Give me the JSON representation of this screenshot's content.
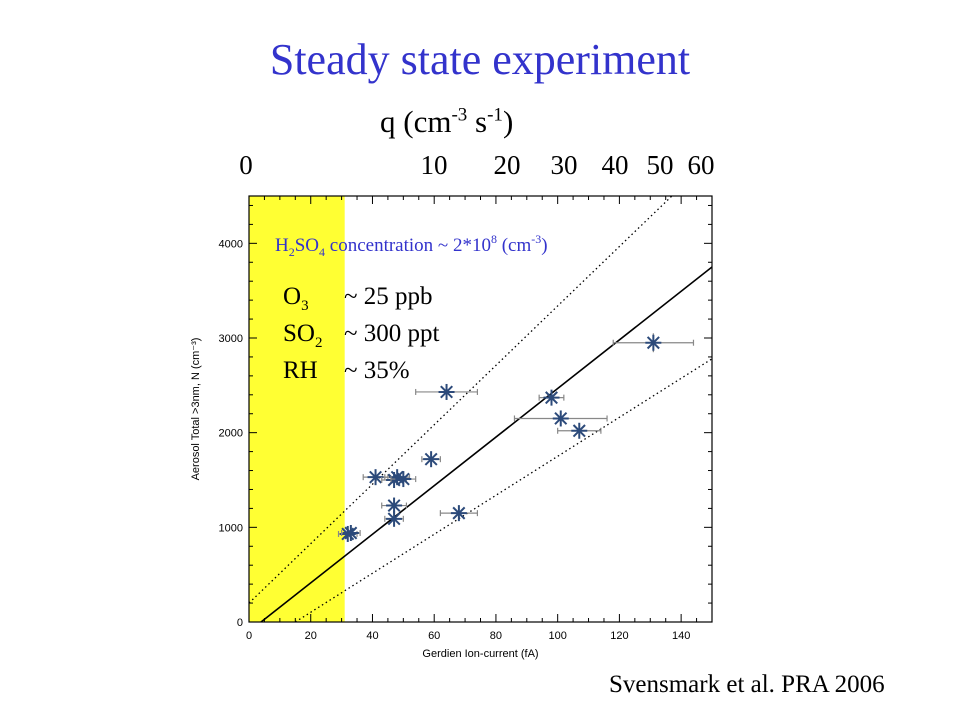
{
  "title": "Steady state experiment",
  "top_axis": {
    "label": "q (cm",
    "label_sup1": "-3",
    "label_mid": " s",
    "label_sup2": "-1",
    "label_end": ")",
    "ticks": [
      "0",
      "10",
      "20",
      "30",
      "40",
      "50",
      "60"
    ]
  },
  "citation": "Svensmark et al. PRA 2006",
  "annotations": {
    "h2so4_pre": "H",
    "h2so4_sub1": "2",
    "h2so4_mid": "SO",
    "h2so4_sub2": "4",
    "h2so4_text": " concentration ~ 2*10",
    "h2so4_sup": "8",
    "h2so4_unit": " (cm",
    "h2so4_unit_sup": "-3",
    "h2so4_end": ")",
    "o3_label": "O",
    "o3_sub": "3",
    "o3_value": "~ 25 ppb",
    "so2_label": "SO",
    "so2_sub": "2",
    "so2_value": "~ 300 ppt",
    "rh_label": "RH",
    "rh_value": "~ 35%"
  },
  "colors": {
    "title": "#3333cc",
    "highlight": "#ffff33",
    "marker": "#2c4a7a",
    "h2so4_text": "#3333cc"
  },
  "chart_data": {
    "type": "scatter",
    "xlabel": "Gerdien Ion-current (fA)",
    "ylabel": "Aerosol Total >3nm, N (cm⁻³)",
    "xlim": [
      0,
      150
    ],
    "ylim": [
      0,
      4500
    ],
    "x_ticks": [
      "0",
      "20",
      "40",
      "60",
      "80",
      "100",
      "120",
      "140"
    ],
    "y_ticks": [
      "0",
      "1000",
      "2000",
      "3000",
      "4000"
    ],
    "highlight_x_range": [
      0,
      31
    ],
    "points": [
      {
        "x": 32,
        "y": 930,
        "xerr": 3,
        "yerr": 60
      },
      {
        "x": 33,
        "y": 940,
        "xerr": 3,
        "yerr": 60
      },
      {
        "x": 41,
        "y": 1530,
        "xerr": 4,
        "yerr": 60
      },
      {
        "x": 47,
        "y": 1500,
        "xerr": 4,
        "yerr": 60
      },
      {
        "x": 48,
        "y": 1530,
        "xerr": 4,
        "yerr": 60
      },
      {
        "x": 50,
        "y": 1510,
        "xerr": 4,
        "yerr": 60
      },
      {
        "x": 47,
        "y": 1230,
        "xerr": 4,
        "yerr": 60
      },
      {
        "x": 47,
        "y": 1090,
        "xerr": 3,
        "yerr": 60
      },
      {
        "x": 59,
        "y": 1720,
        "xerr": 3,
        "yerr": 60
      },
      {
        "x": 64,
        "y": 2430,
        "xerr": 10,
        "yerr": 60
      },
      {
        "x": 68,
        "y": 1150,
        "xerr": 6,
        "yerr": 60
      },
      {
        "x": 98,
        "y": 2370,
        "xerr": 4,
        "yerr": 60
      },
      {
        "x": 101,
        "y": 2150,
        "xerr": 15,
        "yerr": 60
      },
      {
        "x": 107,
        "y": 2020,
        "xerr": 7,
        "yerr": 60
      },
      {
        "x": 131,
        "y": 2950,
        "xerr": 13,
        "yerr": 100
      }
    ],
    "fit_lines": [
      {
        "style": "solid",
        "x": [
          0,
          150
        ],
        "y": [
          -100,
          3750
        ]
      },
      {
        "style": "dotted",
        "x": [
          0,
          137
        ],
        "y": [
          200,
          4500
        ]
      },
      {
        "style": "dotted",
        "x": [
          15,
          150
        ],
        "y": [
          0,
          2780
        ]
      }
    ]
  }
}
